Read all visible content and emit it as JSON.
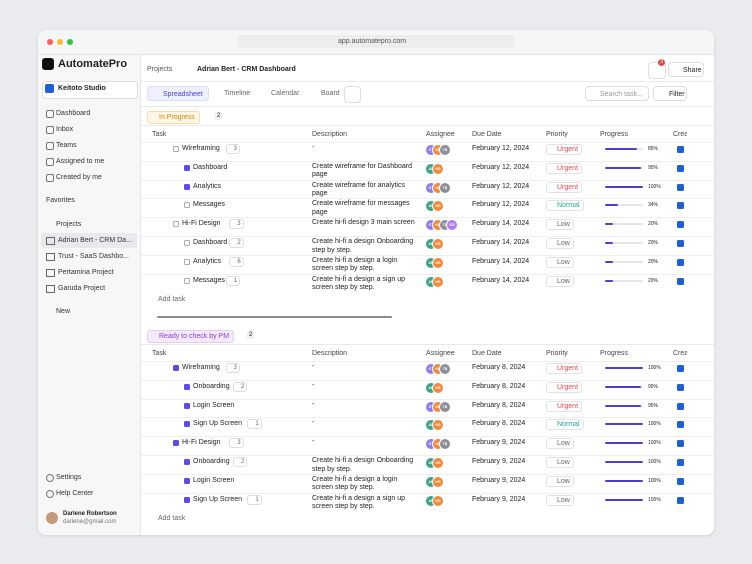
{
  "browser": {
    "url": "app.automatepro.com"
  },
  "sidebar": {
    "brand": "AutomatePro",
    "workspace": "Keitoto Studio",
    "nav": [
      "Dashboard",
      "Inbox",
      "Teams",
      "Assigned to me",
      "Created by me"
    ],
    "favorites": "Favorites",
    "projects_title": "Projects",
    "projects": [
      "Adrian Bert - CRM Da...",
      "Trust - SaaS Dashbo...",
      "Pertamina Project",
      "Garuda Project"
    ],
    "new": "New",
    "bottom": [
      "Settings",
      "Help Center"
    ],
    "user": {
      "name": "Darlene Robertson",
      "email": "darlene@gmail.com"
    }
  },
  "header": {
    "breadcrumb": [
      "Projects",
      "Adrian Bert - CRM Dashboard"
    ],
    "notifications": "3",
    "share": "Share"
  },
  "toolbar": {
    "tabs": [
      "Spreadsheet",
      "Timeline",
      "Calendar",
      "Board"
    ],
    "search": "Search task...",
    "filter": "Filter"
  },
  "columns": [
    "Task",
    "Description",
    "Assignee",
    "Due Date",
    "Priority",
    "Progress",
    "Crea"
  ],
  "add_task": "Add task",
  "groups": [
    {
      "name": "In Progress",
      "count": "2",
      "rows": [
        {
          "task": "Wireframing",
          "subtask": false,
          "checked": false,
          "badge": "3",
          "description": "-",
          "assignees": [
            "GT",
            "HG",
            "TB"
          ],
          "due": "February 12, 2024",
          "priority": "Urgent",
          "progress": 85,
          "progress_label": "85%"
        },
        {
          "task": "Dashboard",
          "subtask": true,
          "checked": true,
          "description": "Create wireframe for Dashboard page",
          "assignees": [
            "AN",
            "HG"
          ],
          "due": "February 12, 2024",
          "priority": "Urgent",
          "progress": 95,
          "progress_label": "95%"
        },
        {
          "task": "Analytics",
          "subtask": true,
          "checked": true,
          "description": "Create wireframe for analytics page",
          "assignees": [
            "GT",
            "HG",
            "TB"
          ],
          "due": "February 12, 2024",
          "priority": "Urgent",
          "progress": 100,
          "progress_label": "100%"
        },
        {
          "task": "Messages",
          "subtask": true,
          "checked": false,
          "description": "Create wireframe for messages page",
          "assignees": [
            "AN",
            "HG"
          ],
          "due": "February 12, 2024",
          "priority": "Normal",
          "progress": 34,
          "progress_label": "34%"
        },
        {
          "task": "Hi-Fi Design",
          "subtask": false,
          "checked": false,
          "badge": "3",
          "description": "Create hi-fi design 3 main screen",
          "assignees": [
            "GT",
            "HG",
            "TB",
            "RO"
          ],
          "due": "February 14, 2024",
          "priority": "Low",
          "progress": 20,
          "progress_label": "20%"
        },
        {
          "task": "Dashboard",
          "subtask": true,
          "checked": false,
          "comments": "2",
          "description": "Create hi-fi a design Onboarding step by step.",
          "assignees": [
            "AN",
            "HG"
          ],
          "due": "February 14, 2024",
          "priority": "Low",
          "progress": 20,
          "progress_label": "20%"
        },
        {
          "task": "Analytics",
          "subtask": true,
          "checked": false,
          "comments": "6",
          "description": "Create hi-fi a design a login screen step by step.",
          "assignees": [
            "AN",
            "HG"
          ],
          "due": "February 14, 2024",
          "priority": "Low",
          "progress": 20,
          "progress_label": "20%"
        },
        {
          "task": "Messages",
          "subtask": true,
          "checked": false,
          "comments": "1",
          "description": "Create hi-fi a design a sign up screen step by step.",
          "assignees": [
            "AN",
            "HG"
          ],
          "due": "February 14, 2024",
          "priority": "Low",
          "progress": 20,
          "progress_label": "20%"
        }
      ]
    },
    {
      "name": "Ready to check by PM",
      "count": "2",
      "rows": [
        {
          "task": "Wireframing",
          "subtask": false,
          "checked": true,
          "badge": "3",
          "description": "-",
          "assignees": [
            "GT",
            "HG",
            "TB"
          ],
          "due": "February 8, 2024",
          "priority": "Urgent",
          "progress": 100,
          "progress_label": "100%"
        },
        {
          "task": "Onboarding",
          "subtask": true,
          "checked": true,
          "comments": "2",
          "description": "-",
          "assignees": [
            "AN",
            "HG"
          ],
          "due": "February 8, 2024",
          "priority": "Urgent",
          "progress": 95,
          "progress_label": "95%"
        },
        {
          "task": "Login Screen",
          "subtask": true,
          "checked": true,
          "description": "-",
          "assignees": [
            "GT",
            "HG",
            "TB"
          ],
          "due": "February 8, 2024",
          "priority": "Urgent",
          "progress": 95,
          "progress_label": "95%"
        },
        {
          "task": "Sign Up Screen",
          "subtask": true,
          "checked": true,
          "comments": "1",
          "description": "-",
          "assignees": [
            "AN",
            "HG"
          ],
          "due": "February 8, 2024",
          "priority": "Normal",
          "progress": 100,
          "progress_label": "100%"
        },
        {
          "task": "Hi-Fi Design",
          "subtask": false,
          "checked": true,
          "badge": "3",
          "description": "-",
          "assignees": [
            "GT",
            "HG",
            "TB"
          ],
          "due": "February 9, 2024",
          "priority": "Low",
          "progress": 100,
          "progress_label": "100%"
        },
        {
          "task": "Onboarding",
          "subtask": true,
          "checked": true,
          "comments": "2",
          "description": "Create hi-fi a design Onboarding step by step.",
          "assignees": [
            "AN",
            "HG"
          ],
          "due": "February 9, 2024",
          "priority": "Low",
          "progress": 100,
          "progress_label": "100%"
        },
        {
          "task": "Login Screen",
          "subtask": true,
          "checked": true,
          "description": "Create hi-fi a design a login screen step by step.",
          "assignees": [
            "AN",
            "HG"
          ],
          "due": "February 9, 2024",
          "priority": "Low",
          "progress": 100,
          "progress_label": "100%"
        },
        {
          "task": "Sign Up Screen",
          "subtask": true,
          "checked": true,
          "comments": "1",
          "description": "Create hi-fi a design a sign up screen step by step.",
          "assignees": [
            "AN",
            "HG"
          ],
          "due": "February 9, 2024",
          "priority": "Low",
          "progress": 100,
          "progress_label": "100%"
        }
      ]
    }
  ]
}
